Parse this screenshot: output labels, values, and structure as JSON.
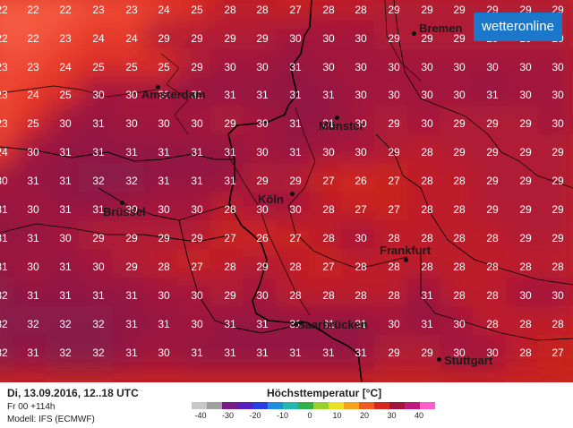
{
  "brand": "wetteronline",
  "colors": {
    "base": "#c8231f",
    "t22": "#f45a3f",
    "t23": "#ef4a35",
    "t24": "#e73a2c",
    "t25": "#dc2e26",
    "t26": "#d12622",
    "t27": "#c8231f",
    "t28": "#bd1f2a",
    "t29": "#b01c34",
    "t30": "#a2193c",
    "t31": "#941942",
    "t32": "#871a48",
    "border": "#000000",
    "river": "#3a0a0a"
  },
  "grid": {
    "rows": [
      [
        22,
        22,
        22,
        23,
        23,
        24,
        25,
        28,
        28,
        27,
        28,
        28,
        29,
        29,
        29,
        29,
        29,
        29
      ],
      [
        22,
        22,
        23,
        24,
        24,
        29,
        29,
        29,
        29,
        30,
        30,
        30,
        29,
        29,
        29,
        29,
        29,
        29
      ],
      [
        23,
        23,
        24,
        25,
        25,
        25,
        29,
        30,
        30,
        31,
        30,
        30,
        30,
        30,
        30,
        30,
        30,
        30
      ],
      [
        23,
        24,
        25,
        30,
        30,
        30,
        31,
        31,
        31,
        31,
        31,
        30,
        30,
        30,
        30,
        31,
        30,
        30
      ],
      [
        23,
        25,
        30,
        31,
        30,
        30,
        30,
        29,
        30,
        31,
        31,
        30,
        29,
        30,
        29,
        29,
        29,
        30
      ],
      [
        24,
        30,
        31,
        31,
        31,
        31,
        31,
        31,
        30,
        31,
        30,
        30,
        29,
        28,
        29,
        29,
        29,
        29
      ],
      [
        30,
        31,
        31,
        32,
        32,
        31,
        31,
        31,
        29,
        29,
        27,
        26,
        27,
        28,
        28,
        29,
        29,
        29
      ],
      [
        31,
        30,
        31,
        31,
        30,
        30,
        30,
        28,
        30,
        30,
        28,
        27,
        27,
        28,
        28,
        29,
        29,
        29
      ],
      [
        31,
        31,
        30,
        29,
        29,
        29,
        29,
        27,
        26,
        27,
        28,
        30,
        28,
        28,
        28,
        28,
        29,
        29
      ],
      [
        31,
        30,
        31,
        30,
        29,
        28,
        27,
        28,
        29,
        28,
        27,
        28,
        28,
        28,
        28,
        28,
        28,
        28
      ],
      [
        32,
        31,
        31,
        31,
        31,
        30,
        30,
        29,
        30,
        28,
        28,
        28,
        28,
        31,
        28,
        28,
        30,
        30
      ],
      [
        32,
        32,
        32,
        32,
        31,
        31,
        30,
        31,
        31,
        31,
        31,
        31,
        30,
        31,
        30,
        28,
        28,
        28
      ],
      [
        32,
        31,
        32,
        32,
        31,
        30,
        31,
        31,
        31,
        31,
        31,
        31,
        29,
        29,
        30,
        30,
        28,
        27
      ]
    ]
  },
  "cities": [
    {
      "name": "Bremen"
    },
    {
      "name": "Amsterdam"
    },
    {
      "name": "Münster"
    },
    {
      "name": "Köln"
    },
    {
      "name": "Brüssel"
    },
    {
      "name": "Frankfurt"
    },
    {
      "name": "Saarbrücken"
    },
    {
      "name": "Stuttgart"
    }
  ],
  "footer": {
    "date": "Di, 13.09.2016, 12..18 UTC",
    "run": "Fr 00 +114h",
    "model": "Modell: IFS (ECMWF)"
  },
  "legend": {
    "title": "Höchsttemperatur [°C]",
    "ticks": [
      "-40",
      "-30",
      "-20",
      "-10",
      "0",
      "10",
      "20",
      "30",
      "40"
    ],
    "stops": [
      "#c8c8c8",
      "#a0a0a0",
      "#7a1c8a",
      "#5a1fbf",
      "#2b3ee0",
      "#1f8fe0",
      "#22b8b0",
      "#2fb04a",
      "#9ad02c",
      "#e8e020",
      "#f7a21a",
      "#ef5a24",
      "#d8271f",
      "#a3163c",
      "#c21a7a",
      "#ff5ccf"
    ]
  }
}
